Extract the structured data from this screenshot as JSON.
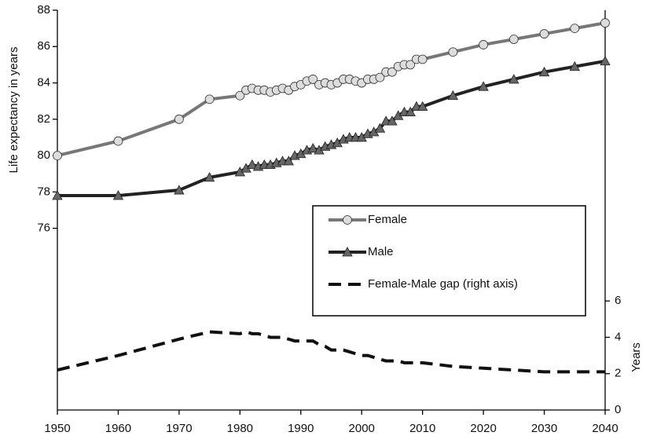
{
  "chart_data": {
    "type": "line",
    "y_label": "Life expectancy in years",
    "y2_label": "Years",
    "x": [
      1950,
      1960,
      1970,
      1975,
      1980,
      1981,
      1982,
      1983,
      1984,
      1985,
      1986,
      1987,
      1988,
      1989,
      1990,
      1991,
      1992,
      1993,
      1994,
      1995,
      1996,
      1997,
      1998,
      1999,
      2000,
      2001,
      2002,
      2003,
      2004,
      2005,
      2006,
      2007,
      2008,
      2009,
      2010,
      2015,
      2020,
      2025,
      2030,
      2035,
      2040
    ],
    "series": [
      {
        "name": "Female",
        "color": "#777777",
        "marker": "circle",
        "marker_color": "#dddddd",
        "values": [
          80.0,
          80.8,
          82.0,
          83.1,
          83.3,
          83.6,
          83.7,
          83.6,
          83.6,
          83.5,
          83.6,
          83.7,
          83.6,
          83.8,
          83.9,
          84.1,
          84.2,
          83.9,
          84.0,
          83.9,
          84.0,
          84.2,
          84.2,
          84.1,
          84.0,
          84.2,
          84.2,
          84.3,
          84.6,
          84.6,
          84.9,
          85.0,
          85.0,
          85.3,
          85.3,
          85.7,
          86.1,
          86.4,
          86.7,
          87.0,
          87.3
        ]
      },
      {
        "name": "Male",
        "color": "#222222",
        "marker": "triangle",
        "marker_color": "#666666",
        "values": [
          77.8,
          77.8,
          78.1,
          78.8,
          79.1,
          79.3,
          79.5,
          79.4,
          79.5,
          79.5,
          79.6,
          79.7,
          79.7,
          80.0,
          80.1,
          80.3,
          80.4,
          80.3,
          80.5,
          80.6,
          80.7,
          80.9,
          81.0,
          81.0,
          81.0,
          81.2,
          81.3,
          81.5,
          81.9,
          81.9,
          82.2,
          82.4,
          82.4,
          82.7,
          82.7,
          83.3,
          83.8,
          84.2,
          84.6,
          84.9,
          85.2
        ]
      },
      {
        "name": "Female-Male gap (right axis)",
        "color": "#111111",
        "dashed": true,
        "axis": "y2",
        "values": [
          2.2,
          3.0,
          3.9,
          4.3,
          4.2,
          4.3,
          4.2,
          4.2,
          4.1,
          4.0,
          4.0,
          4.0,
          3.9,
          3.8,
          3.8,
          3.8,
          3.8,
          3.6,
          3.5,
          3.3,
          3.3,
          3.3,
          3.2,
          3.1,
          3.0,
          3.0,
          2.9,
          2.8,
          2.7,
          2.7,
          2.7,
          2.6,
          2.6,
          2.6,
          2.6,
          2.4,
          2.3,
          2.2,
          2.1,
          2.1,
          2.1
        ]
      }
    ],
    "xlim": [
      1950,
      2040
    ],
    "xticks": [
      1950,
      1960,
      1970,
      1980,
      1990,
      2000,
      2010,
      2020,
      2030,
      2040
    ],
    "ylim": [
      66,
      88
    ],
    "yticks": [
      76,
      78,
      80,
      82,
      84,
      86,
      88
    ],
    "y2lim": [
      0,
      22
    ],
    "y2ticks": [
      0,
      2,
      4,
      6
    ]
  }
}
